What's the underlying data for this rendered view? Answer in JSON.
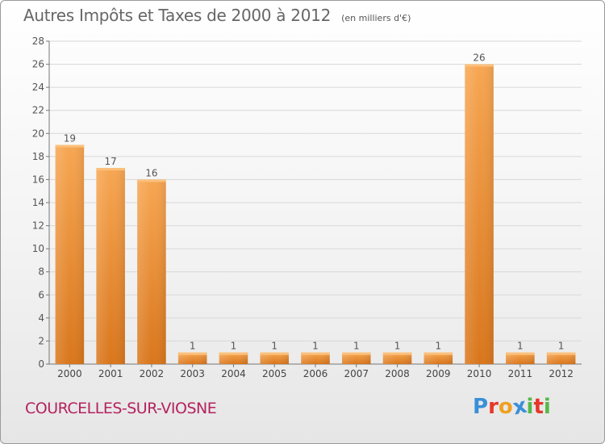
{
  "chart_data": {
    "type": "bar",
    "title": "Autres Impôts et Taxes de 2000 à 2012",
    "subtitle": "(en milliers d'€)",
    "categories": [
      "2000",
      "2001",
      "2002",
      "2003",
      "2004",
      "2005",
      "2006",
      "2007",
      "2008",
      "2009",
      "2010",
      "2011",
      "2012"
    ],
    "values": [
      19,
      17,
      16,
      1,
      1,
      1,
      1,
      1,
      1,
      1,
      26,
      1,
      1
    ],
    "data_labels": [
      "19",
      "17",
      "16",
      "1",
      "1",
      "1",
      "1",
      "1",
      "1",
      "1",
      "26",
      "1",
      "1"
    ],
    "ylim": [
      0,
      28
    ],
    "yticks": [
      0,
      2,
      4,
      6,
      8,
      10,
      12,
      14,
      16,
      18,
      20,
      22,
      24,
      26,
      28
    ],
    "grid": true,
    "bar_color": "#f0963c"
  },
  "footer": {
    "commune": "COURCELLES-SUR-VIOSNE",
    "logo_letters": [
      "P",
      "r",
      "o",
      "x",
      "i",
      "t",
      "i"
    ],
    "logo_colors": [
      "#3a8fd8",
      "#e8362a",
      "#f0a020",
      "#3a8fd8",
      "#54b948",
      "#e8362a",
      "#54b948"
    ]
  }
}
